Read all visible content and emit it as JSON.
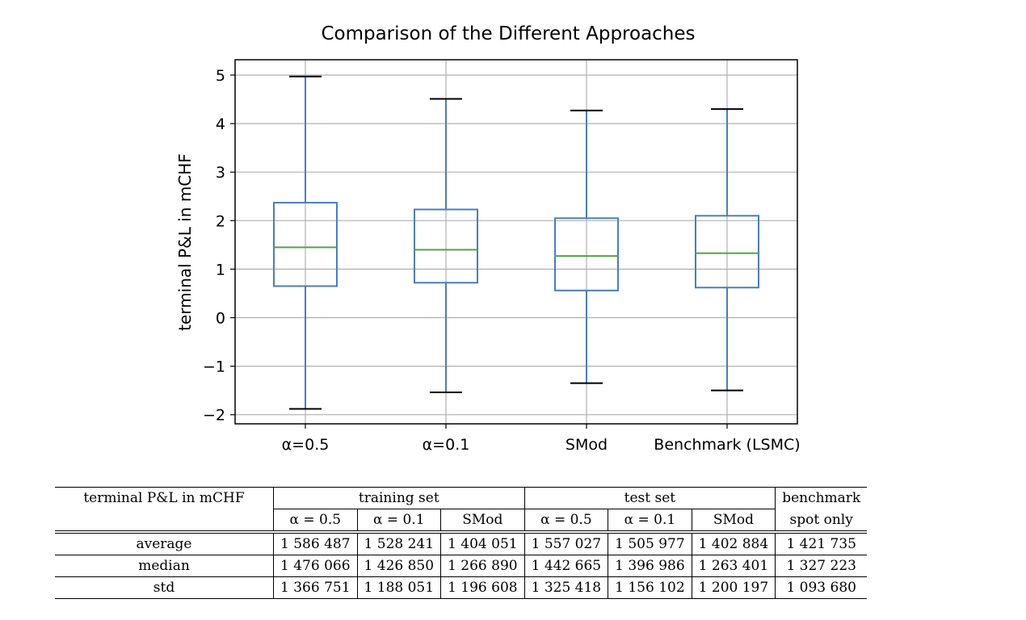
{
  "chart_data": {
    "type": "box",
    "title": "Comparison of the Different Approaches",
    "xlabel": "",
    "ylabel": "terminal P&L in mCHF",
    "ylim": [
      -2.2,
      5.3
    ],
    "yticks": [
      5,
      4,
      3,
      2,
      1,
      0,
      -1,
      -2
    ],
    "ytick_labels": [
      "5",
      "4",
      "3",
      "2",
      "1",
      "0",
      "−1",
      "−2"
    ],
    "grid": true,
    "colors": {
      "box": "#4a7ebb",
      "median": "#55a04a",
      "whisker_cap": "#000000",
      "grid": "#b0b0b0"
    },
    "categories": [
      "α=0.5",
      "α=0.1",
      "SMod",
      "Benchmark (LSMC)"
    ],
    "boxes": [
      {
        "label": "α=0.5",
        "whisker_low": -1.88,
        "q1": 0.65,
        "median": 1.45,
        "q3": 2.37,
        "whisker_high": 4.97
      },
      {
        "label": "α=0.1",
        "whisker_low": -1.54,
        "q1": 0.72,
        "median": 1.4,
        "q3": 2.23,
        "whisker_high": 4.51
      },
      {
        "label": "SMod",
        "whisker_low": -1.35,
        "q1": 0.56,
        "median": 1.27,
        "q3": 2.05,
        "whisker_high": 4.27
      },
      {
        "label": "Benchmark (LSMC)",
        "whisker_low": -1.5,
        "q1": 0.62,
        "median": 1.33,
        "q3": 2.1,
        "whisker_high": 4.3
      }
    ]
  },
  "table": {
    "row_header": "terminal P&L in mCHF",
    "groups": [
      {
        "label": "training set",
        "span": 3
      },
      {
        "label": "test set",
        "span": 3
      },
      {
        "label": "benchmark",
        "span": 1
      }
    ],
    "subheaders": [
      "α = 0.5",
      "α = 0.1",
      "SMod",
      "α = 0.5",
      "α = 0.1",
      "SMod",
      "spot only"
    ],
    "rows": [
      {
        "label": "average",
        "values": [
          "1 586 487",
          "1 528 241",
          "1 404 051",
          "1 557 027",
          "1 505 977",
          "1 402 884",
          "1 421 735"
        ]
      },
      {
        "label": "median",
        "values": [
          "1 476 066",
          "1 426 850",
          "1 266 890",
          "1 442 665",
          "1 396 986",
          "1 263 401",
          "1 327 223"
        ]
      },
      {
        "label": "std",
        "values": [
          "1 366 751",
          "1 188 051",
          "1 196 608",
          "1 325 418",
          "1 156 102",
          "1 200 197",
          "1 093 680"
        ]
      }
    ]
  }
}
